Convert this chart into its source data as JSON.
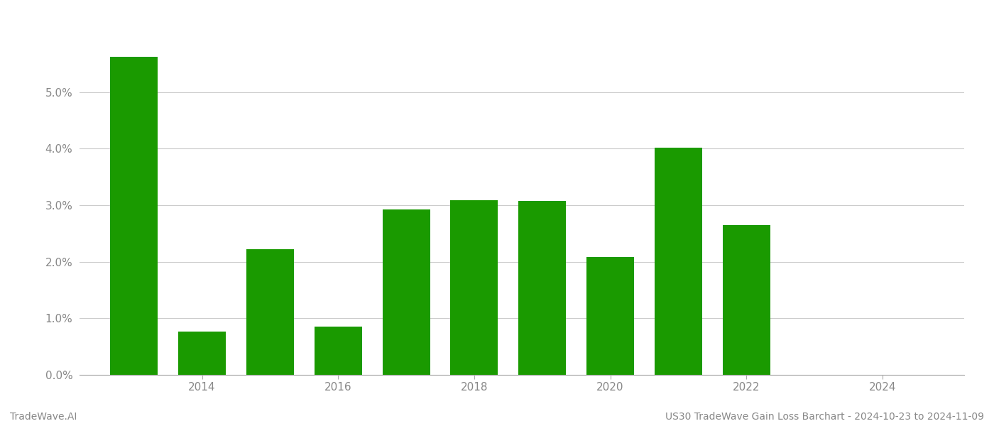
{
  "years": [
    2013,
    2014,
    2015,
    2016,
    2017,
    2018,
    2019,
    2020,
    2021,
    2022,
    2023
  ],
  "values": [
    5.62,
    0.77,
    2.22,
    0.85,
    2.92,
    3.09,
    3.07,
    2.08,
    4.02,
    2.65,
    0.0
  ],
  "bar_color": "#1a9a00",
  "background_color": "#ffffff",
  "ytick_labels": [
    "0.0%",
    "1.0%",
    "2.0%",
    "3.0%",
    "4.0%",
    "5.0%"
  ],
  "ytick_values": [
    0.0,
    1.0,
    2.0,
    3.0,
    4.0,
    5.0
  ],
  "xtick_labels": [
    "2014",
    "2016",
    "2018",
    "2020",
    "2022",
    "2024"
  ],
  "xtick_values": [
    2014,
    2016,
    2018,
    2020,
    2022,
    2024
  ],
  "footer_left": "TradeWave.AI",
  "footer_right": "US30 TradeWave Gain Loss Barchart - 2024-10-23 to 2024-11-09",
  "grid_color": "#cccccc",
  "tick_color": "#888888",
  "ylim_max": 6.4,
  "ylim_min": 0.0,
  "xlim_min": 2012.2,
  "xlim_max": 2025.2,
  "bar_width": 0.7
}
